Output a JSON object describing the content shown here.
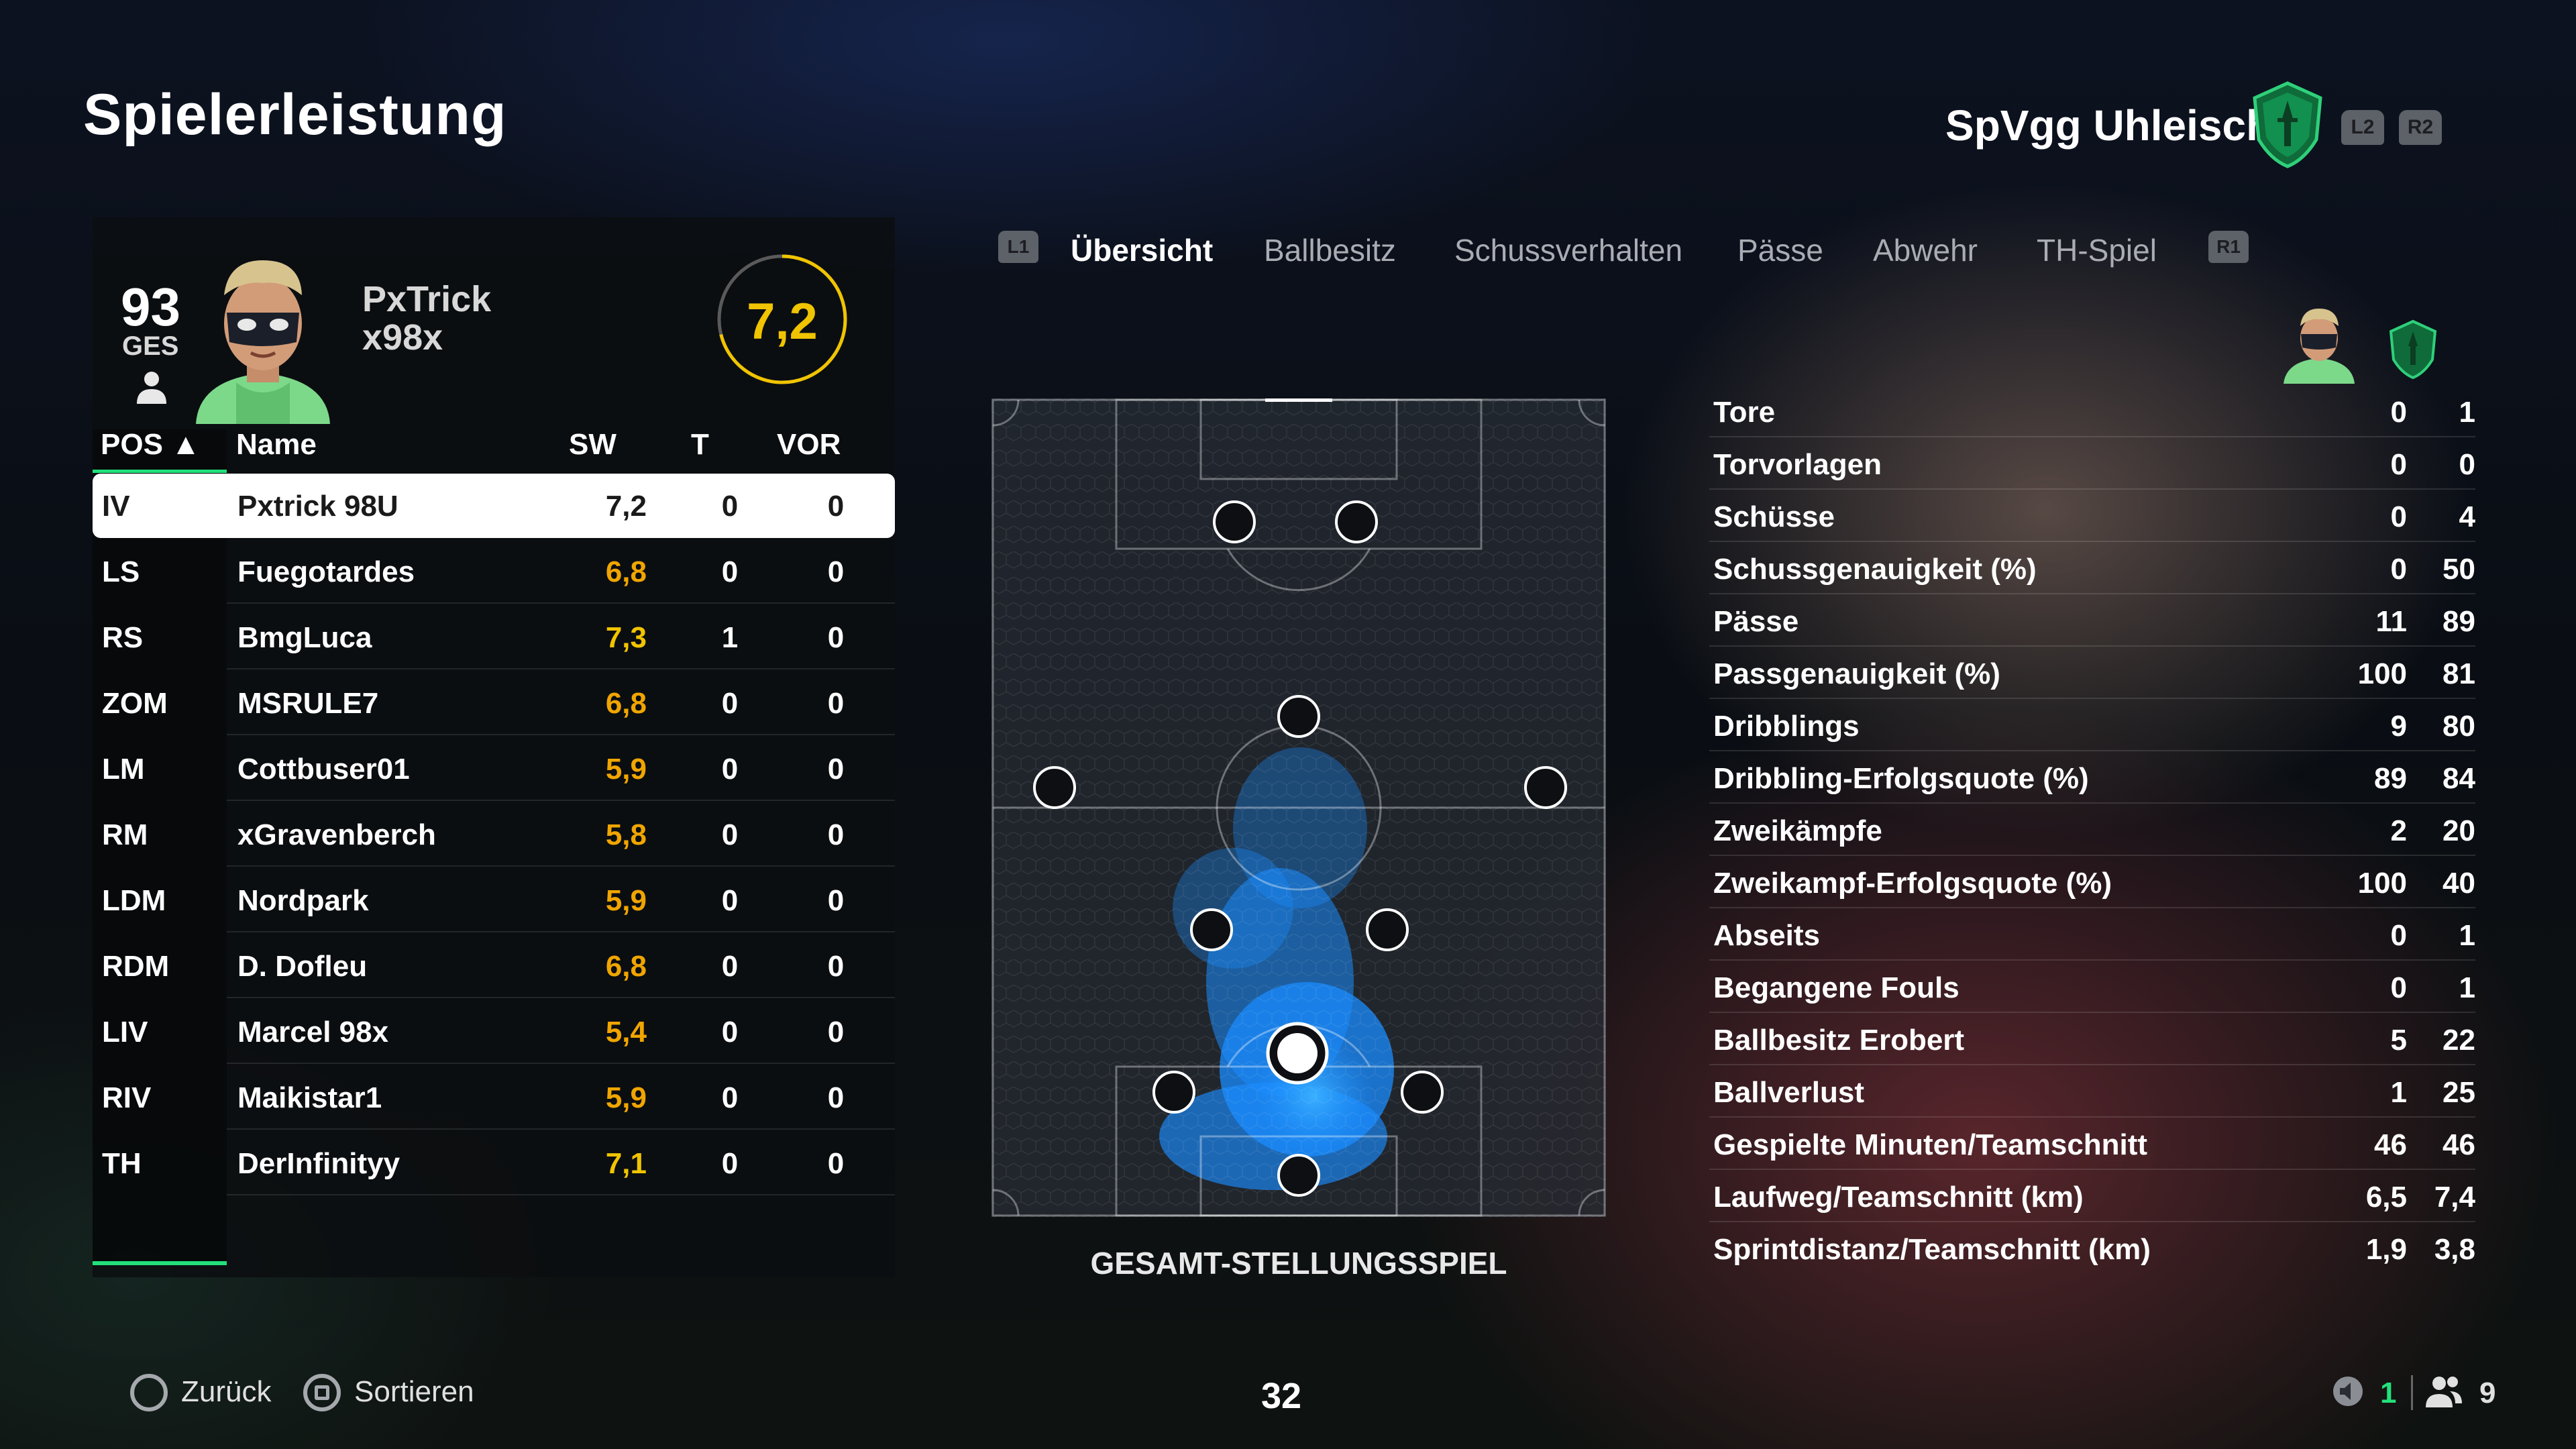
{
  "header": {
    "title": "Spielerleistung",
    "club_name": "SpVgg Uhleisch",
    "trigger_left": "L2",
    "trigger_right": "R2"
  },
  "player_card": {
    "overall": "93",
    "overall_label": "GES",
    "name_line1": "PxTrick",
    "name_line2": "x98x",
    "match_rating": "7,2",
    "rating_color": "#f0c400"
  },
  "table": {
    "headers": {
      "pos": "POS ▲",
      "name": "Name",
      "sw": "SW",
      "t": "T",
      "vor": "VOR"
    },
    "rows": [
      {
        "pos": "IV",
        "name": "Pxtrick 98U",
        "sw": "7,2",
        "t": "0",
        "vor": "0"
      },
      {
        "pos": "LS",
        "name": "Fuegotardes",
        "sw": "6,8",
        "t": "0",
        "vor": "0"
      },
      {
        "pos": "RS",
        "name": "BmgLuca",
        "sw": "7,3",
        "t": "1",
        "vor": "0"
      },
      {
        "pos": "ZOM",
        "name": "MSRULE7",
        "sw": "6,8",
        "t": "0",
        "vor": "0"
      },
      {
        "pos": "LM",
        "name": "Cottbuser01",
        "sw": "5,9",
        "t": "0",
        "vor": "0"
      },
      {
        "pos": "RM",
        "name": "xGravenberch",
        "sw": "5,8",
        "t": "0",
        "vor": "0"
      },
      {
        "pos": "LDM",
        "name": "Nordpark",
        "sw": "5,9",
        "t": "0",
        "vor": "0"
      },
      {
        "pos": "RDM",
        "name": "D. Dofleu",
        "sw": "6,8",
        "t": "0",
        "vor": "0"
      },
      {
        "pos": "LIV",
        "name": "Marcel 98x",
        "sw": "5,4",
        "t": "0",
        "vor": "0"
      },
      {
        "pos": "RIV",
        "name": "Maikistar1",
        "sw": "5,9",
        "t": "0",
        "vor": "0"
      },
      {
        "pos": "TH",
        "name": "DerInfinityy",
        "sw": "7,1",
        "t": "0",
        "vor": "0"
      }
    ]
  },
  "tabs": {
    "trigger_left": "L1",
    "trigger_right": "R1",
    "items": [
      "Übersicht",
      "Ballbesitz",
      "Schussverhalten",
      "Pässe",
      "Abwehr",
      "TH-Spiel"
    ],
    "active": "Übersicht"
  },
  "pitch": {
    "label": "GESAMT-STELLUNGSSPIEL",
    "heat_color": "#1a8cff"
  },
  "stats": {
    "rows": [
      {
        "label": "Tore",
        "player": "0",
        "team": "1"
      },
      {
        "label": "Torvorlagen",
        "player": "0",
        "team": "0"
      },
      {
        "label": "Schüsse",
        "player": "0",
        "team": "4"
      },
      {
        "label": "Schussgenauigkeit (%)",
        "player": "0",
        "team": "50"
      },
      {
        "label": "Pässe",
        "player": "11",
        "team": "89"
      },
      {
        "label": "Passgenauigkeit (%)",
        "player": "100",
        "team": "81"
      },
      {
        "label": "Dribblings",
        "player": "9",
        "team": "80"
      },
      {
        "label": "Dribbling-Erfolgsquote (%)",
        "player": "89",
        "team": "84"
      },
      {
        "label": "Zweikämpfe",
        "player": "2",
        "team": "20"
      },
      {
        "label": "Zweikampf-Erfolgsquote (%)",
        "player": "100",
        "team": "40"
      },
      {
        "label": "Abseits",
        "player": "0",
        "team": "1"
      },
      {
        "label": "Begangene Fouls",
        "player": "0",
        "team": "1"
      },
      {
        "label": "Ballbesitz Erobert",
        "player": "5",
        "team": "22"
      },
      {
        "label": "Ballverlust",
        "player": "1",
        "team": "25"
      },
      {
        "label": "Gespielte Minuten/Teamschnitt",
        "player": "46",
        "team": "46"
      },
      {
        "label": "Laufweg/Teamschnitt (km)",
        "player": "6,5",
        "team": "7,4"
      },
      {
        "label": "Sprintdistanz/Teamschnitt (km)",
        "player": "1,9",
        "team": "3,8"
      }
    ]
  },
  "footer": {
    "back_label": "Zurück",
    "sort_label": "Sortieren",
    "page_number": "32",
    "voice_count": "1",
    "party_count": "9"
  },
  "colors": {
    "accent_green": "#22e07a",
    "rating_yellow": "#f0c400",
    "rating_orange": "#f0a500"
  }
}
